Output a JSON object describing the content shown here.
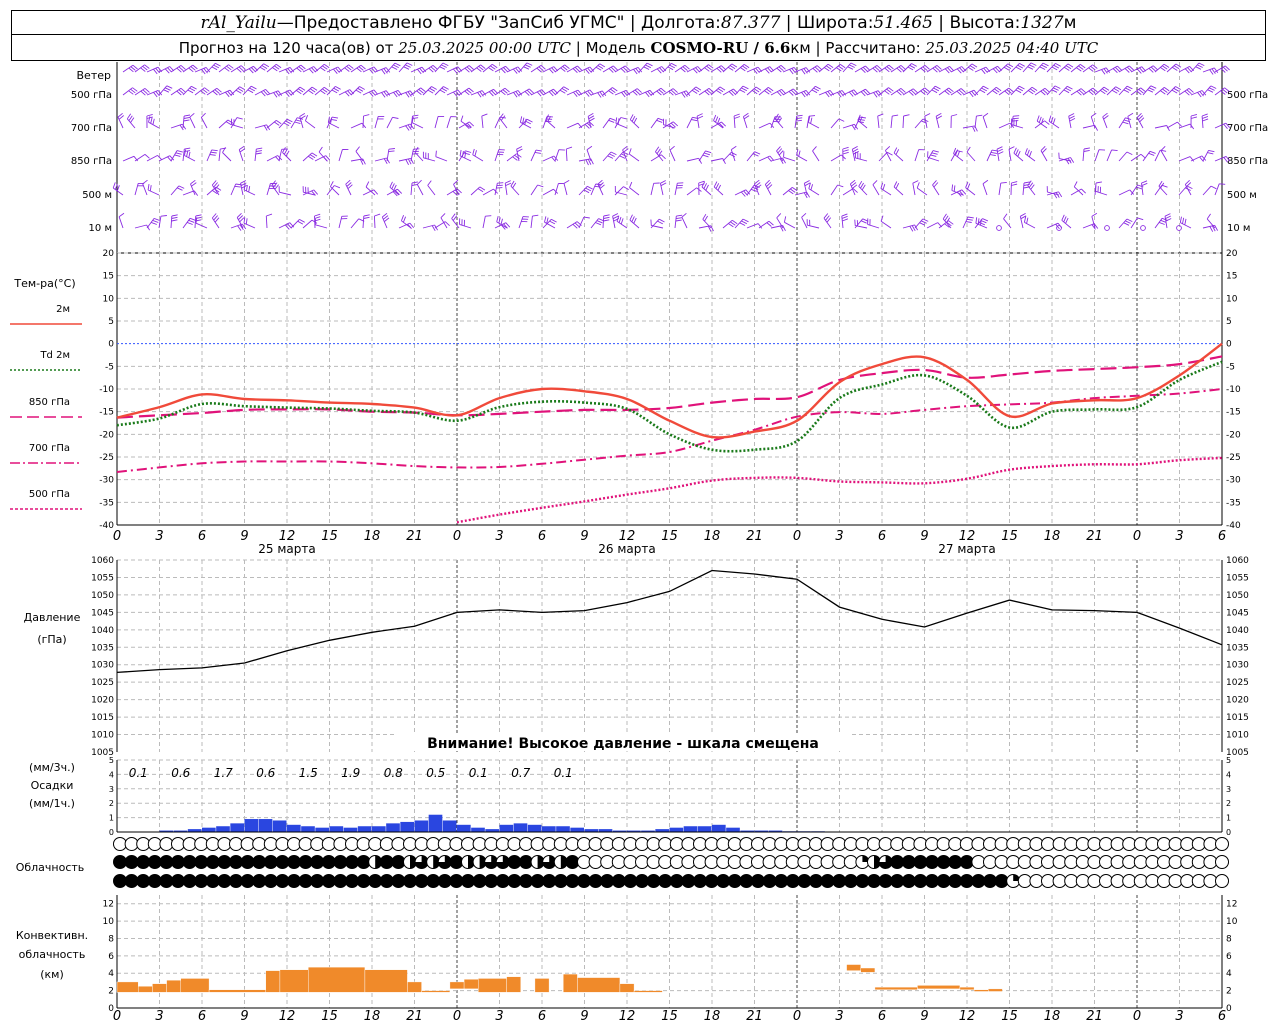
{
  "header": {
    "station": "rAl_Yailu",
    "dash": " — ",
    "provider": "Предоставлено ФГБУ \"ЗапСиб УГМС\"",
    "sep": " | ",
    "lon_label": "Долгота: ",
    "lon": "87.377",
    "lat_label": "Широта: ",
    "lat": "51.465",
    "alt_label": "Высота: ",
    "alt": "1327",
    "alt_unit": "м",
    "forecast_label": "Прогноз на 120 часа(ов) от ",
    "forecast_time": "25.03.2025 00:00 UTC",
    "model_label": " | Модель ",
    "model": "COSMO-RU / 6.6",
    "model_unit": "км",
    "calc_label": " | Рассчитано: ",
    "calc_time": "25.03.2025 04:40 UTC"
  },
  "wind_panel": {
    "title": "Ветер",
    "levels": [
      "500 гПа",
      "700 гПа",
      "850 гПа",
      "500 м",
      "10  м"
    ]
  },
  "temp_panel": {
    "title": "Тем-ра(°C)",
    "legend": [
      {
        "label": "2м",
        "color": "#f04a3a",
        "style": "solid"
      },
      {
        "label": "Td  2м",
        "color": "#1a7a1a",
        "style": "dotted"
      },
      {
        "label": "850 гПа",
        "color": "#e0127a",
        "style": "longdash"
      },
      {
        "label": "700 гПа",
        "color": "#e0127a",
        "style": "dashdot"
      },
      {
        "label": "500 гПа",
        "color": "#e0127a",
        "style": "dot"
      }
    ],
    "yticks": [
      "20",
      "15",
      "10",
      "5",
      "0",
      "-5",
      "-10",
      "-15",
      "-20",
      "-25",
      "-30",
      "-35",
      "-40"
    ]
  },
  "axis": {
    "hour_ticks": [
      "0",
      "3",
      "6",
      "9",
      "12",
      "15",
      "18",
      "21",
      "0",
      "3",
      "6",
      "9",
      "12",
      "15",
      "18",
      "21",
      "0",
      "3",
      "6",
      "9",
      "12",
      "15",
      "18",
      "21",
      "0",
      "3",
      "6"
    ],
    "dates": [
      "25 марта",
      "26 марта",
      "27 марта"
    ]
  },
  "pressure_panel": {
    "title_line1": "Давление",
    "title_line2": "(гПа)",
    "yticks": [
      "1060",
      "1055",
      "1050",
      "1045",
      "1040",
      "1035",
      "1030",
      "1025",
      "1020",
      "1015",
      "1010",
      "1005"
    ],
    "warning": "Внимание! Высокое давление - шкала смещена"
  },
  "precip_panel": {
    "label_top": "(мм/3ч.)",
    "label_mid": "Осадки",
    "label_bot": "(мм/1ч.)",
    "yticks": [
      "5",
      "4",
      "3",
      "2",
      "1",
      "0"
    ],
    "sums_3h": [
      "0.1",
      "0.6",
      "1.7",
      "0.6",
      "1.5",
      "1.9",
      "0.8",
      "0.5",
      "0.1",
      "0.7",
      "0.1"
    ],
    "color": "#2a46e0"
  },
  "cloud_panel": {
    "title": "Облачность",
    "rows_coverage_0_to_4": [
      "000000000000000000000000000000000000000000000000000000000000000000000000000000000000000000000000",
      "444444444444444444444424423234223344232400000000000000000000000012344444440000000000000000000000",
      "444444444444444444444444444444444444444444444444444444444444444444444444444441000000000000000000"
    ]
  },
  "conv_panel": {
    "title_line1": "Конвективн.",
    "title_line2": "облачность",
    "title_line3": "(км)",
    "yticks": [
      "12",
      "10",
      "8",
      "6",
      "4",
      "2",
      "0"
    ],
    "color": "#f08a2a"
  },
  "chart_data": [
    {
      "type": "line",
      "title": "Тем-ра(°C)",
      "ylim": [
        -40,
        20
      ],
      "x_hours": [
        0,
        3,
        6,
        9,
        12,
        15,
        18,
        21,
        24,
        27,
        30,
        33,
        36,
        39,
        42,
        45,
        48,
        51,
        54,
        57,
        60,
        63,
        66,
        69,
        72,
        75,
        78
      ],
      "series": [
        {
          "name": "2м",
          "values": [
            -16.3,
            -14.0,
            -11.2,
            -12.2,
            -12.5,
            -13.0,
            -13.3,
            -14.1,
            -15.8,
            -12.0,
            -10.0,
            -10.5,
            -12.2,
            -17.0,
            -20.6,
            -19.4,
            -17.0,
            -8.5,
            -4.5,
            -3.0,
            -8.0,
            -16.0,
            -13.2,
            -12.5,
            -12.0,
            -7.0,
            0.0
          ]
        },
        {
          "name": "Td  2м",
          "values": [
            -18.0,
            -16.5,
            -13.3,
            -13.8,
            -14.1,
            -14.3,
            -14.8,
            -15.2,
            -17.0,
            -14.0,
            -12.8,
            -13.0,
            -14.4,
            -20.0,
            -23.4,
            -23.4,
            -21.5,
            -12.0,
            -9.0,
            -7.0,
            -11.5,
            -18.5,
            -15.0,
            -14.5,
            -14.0,
            -8.0,
            -4.0
          ]
        },
        {
          "name": "850 гПа",
          "values": [
            -16.3,
            -15.8,
            -15.3,
            -14.6,
            -14.5,
            -14.5,
            -15.0,
            -15.2,
            -15.8,
            -15.5,
            -15.0,
            -14.6,
            -14.6,
            -14.2,
            -13.0,
            -12.2,
            -11.8,
            -8.0,
            -6.5,
            -5.8,
            -7.5,
            -6.8,
            -6.0,
            -5.6,
            -5.2,
            -4.5,
            -2.8
          ]
        },
        {
          "name": "700 гПа",
          "values": [
            -28.3,
            -27.3,
            -26.4,
            -26.0,
            -26.0,
            -26.0,
            -26.4,
            -27.0,
            -27.3,
            -27.2,
            -26.5,
            -25.6,
            -24.7,
            -23.9,
            -21.4,
            -19.0,
            -16.1,
            -15.1,
            -15.5,
            -14.6,
            -13.8,
            -13.4,
            -13.0,
            -12.0,
            -11.5,
            -11.0,
            -10.0
          ]
        },
        {
          "name": "500 гПа",
          "values": [
            null,
            null,
            null,
            null,
            null,
            null,
            null,
            null,
            -39.4,
            -37.7,
            -36.2,
            -34.8,
            -33.3,
            -31.9,
            -30.2,
            -29.6,
            -29.6,
            -30.4,
            -30.6,
            -30.8,
            -29.8,
            -27.8,
            -27.0,
            -26.6,
            -26.6,
            -25.7,
            -25.2
          ]
        }
      ]
    },
    {
      "type": "line",
      "title": "Давление",
      "ylabel": "(гПа)",
      "ylim": [
        1005,
        1060
      ],
      "x_hours": [
        0,
        3,
        6,
        9,
        12,
        15,
        18,
        21,
        24,
        27,
        30,
        33,
        36,
        39,
        42,
        45,
        48,
        51,
        54,
        57,
        60,
        63,
        66,
        69,
        72,
        75,
        78
      ],
      "series": [
        {
          "name": "Давление",
          "values": [
            1027.8,
            1028.6,
            1029.1,
            1030.5,
            1034.0,
            1037.0,
            1039.3,
            1041.0,
            1045.0,
            1045.7,
            1045.0,
            1045.5,
            1047.8,
            1051.0,
            1057.0,
            1056.0,
            1054.5,
            1046.5,
            1043.0,
            1040.8,
            1044.8,
            1048.5,
            1045.7,
            1045.5,
            1045.0,
            1040.5,
            1035.7
          ]
        }
      ]
    },
    {
      "type": "bar",
      "title": "Осадки",
      "ylabel": "(мм/1ч.)",
      "ylim": [
        0,
        5
      ],
      "start_hour": 0,
      "hourly_values": [
        0,
        0,
        0,
        0.1,
        0.1,
        0.2,
        0.3,
        0.4,
        0.6,
        0.9,
        0.9,
        0.8,
        0.5,
        0.4,
        0.3,
        0.4,
        0.3,
        0.4,
        0.4,
        0.6,
        0.7,
        0.8,
        1.2,
        0.8,
        0.5,
        0.3,
        0.2,
        0.5,
        0.6,
        0.5,
        0.4,
        0.4,
        0.3,
        0.2,
        0.2,
        0.1,
        0.1,
        0.1,
        0.2,
        0.3,
        0.4,
        0.4,
        0.5,
        0.3,
        0.1,
        0.1,
        0.1,
        0.05,
        0.05,
        0.05,
        0.02
      ]
    },
    {
      "type": "bar",
      "title": "Конвективн. облачность",
      "ylabel": "(км)",
      "ylim": [
        0,
        13
      ],
      "segments": [
        {
          "x0": 0,
          "x1": 1.5,
          "bottom": 1.8,
          "top": 3.0
        },
        {
          "x0": 1.5,
          "x1": 2.5,
          "bottom": 1.8,
          "top": 2.5
        },
        {
          "x0": 2.5,
          "x1": 3.5,
          "bottom": 1.8,
          "top": 2.8
        },
        {
          "x0": 3.5,
          "x1": 4.5,
          "bottom": 1.8,
          "top": 3.2
        },
        {
          "x0": 4.5,
          "x1": 6.5,
          "bottom": 1.8,
          "top": 3.4
        },
        {
          "x0": 6.5,
          "x1": 10.5,
          "bottom": 1.8,
          "top": 2.1
        },
        {
          "x0": 10.5,
          "x1": 11.5,
          "bottom": 1.8,
          "top": 4.3
        },
        {
          "x0": 11.5,
          "x1": 13.5,
          "bottom": 1.8,
          "top": 4.4
        },
        {
          "x0": 13.5,
          "x1": 17.5,
          "bottom": 1.8,
          "top": 4.7
        },
        {
          "x0": 17.5,
          "x1": 20.5,
          "bottom": 1.8,
          "top": 4.4
        },
        {
          "x0": 20.5,
          "x1": 21.5,
          "bottom": 1.8,
          "top": 3.0
        },
        {
          "x0": 21.5,
          "x1": 23.5,
          "bottom": 1.8,
          "top": 2.0
        },
        {
          "x0": 23.5,
          "x1": 24.5,
          "bottom": 2.2,
          "top": 3.0
        },
        {
          "x0": 24.5,
          "x1": 25.5,
          "bottom": 2.2,
          "top": 3.3
        },
        {
          "x0": 25.5,
          "x1": 27.5,
          "bottom": 1.8,
          "top": 3.4
        },
        {
          "x0": 27.5,
          "x1": 28.5,
          "bottom": 1.8,
          "top": 3.6
        },
        {
          "x0": 29.5,
          "x1": 30.5,
          "bottom": 1.8,
          "top": 3.4
        },
        {
          "x0": 31.5,
          "x1": 32.5,
          "bottom": 1.8,
          "top": 3.9
        },
        {
          "x0": 32.5,
          "x1": 35.5,
          "bottom": 1.8,
          "top": 3.5
        },
        {
          "x0": 35.5,
          "x1": 36.5,
          "bottom": 1.8,
          "top": 2.8
        },
        {
          "x0": 36.5,
          "x1": 38.5,
          "bottom": 1.8,
          "top": 2.0
        },
        {
          "x0": 51.5,
          "x1": 52.5,
          "bottom": 4.3,
          "top": 5.0
        },
        {
          "x0": 52.5,
          "x1": 53.5,
          "bottom": 4.1,
          "top": 4.6
        },
        {
          "x0": 53.5,
          "x1": 56.5,
          "bottom": 2.1,
          "top": 2.4
        },
        {
          "x0": 56.5,
          "x1": 59.5,
          "bottom": 2.2,
          "top": 2.6
        },
        {
          "x0": 59.5,
          "x1": 60.5,
          "bottom": 2.1,
          "top": 2.4
        },
        {
          "x0": 60.5,
          "x1": 61.5,
          "bottom": 1.9,
          "top": 2.1
        },
        {
          "x0": 61.5,
          "x1": 62.5,
          "bottom": 1.9,
          "top": 2.2
        }
      ]
    }
  ]
}
